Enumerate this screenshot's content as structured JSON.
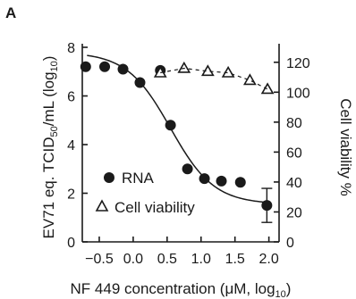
{
  "panel_label": "A",
  "chart_data": {
    "type": "scatter",
    "xlabel": {
      "main": "NF 449 concentration (μM, log",
      "sub": "10",
      "end": ")"
    },
    "ylabel_left": {
      "main": "EV71 eq. TCID",
      "sub": "50",
      "mid": "/mL (log",
      "sub2": "10",
      "end": ")"
    },
    "ylabel_right": "Cell viability %",
    "xlim": [
      -0.75,
      2.15
    ],
    "ylim_left": [
      0,
      8
    ],
    "ylim_right": [
      0,
      130
    ],
    "xticks": [
      -0.5,
      0.0,
      0.5,
      1.0,
      1.5,
      2.0
    ],
    "xtick_labels": [
      "−0.5",
      "0.0",
      "0.5",
      "1.0",
      "1.5",
      "2.0"
    ],
    "yticks_left": [
      0,
      2,
      4,
      6,
      8
    ],
    "yticks_right": [
      0,
      20,
      40,
      60,
      80,
      100,
      120
    ],
    "series": [
      {
        "name": "RNA",
        "axis": "left",
        "marker": "filled-circle",
        "x": [
          -0.7,
          -0.42,
          -0.15,
          0.1,
          0.4,
          0.55,
          0.8,
          1.05,
          1.3,
          1.58,
          1.97
        ],
        "y": [
          7.2,
          7.2,
          7.1,
          6.55,
          7.05,
          4.8,
          3.0,
          2.6,
          2.5,
          2.45,
          1.5
        ],
        "error": [
          null,
          null,
          null,
          null,
          null,
          null,
          null,
          null,
          null,
          null,
          0.7
        ]
      },
      {
        "name": "Cell viability",
        "axis": "right",
        "marker": "open-triangle",
        "x": [
          0.4,
          0.75,
          1.1,
          1.4,
          1.72,
          1.98
        ],
        "y": [
          113,
          116,
          114,
          113,
          108,
          102
        ]
      }
    ],
    "fit_curve": {
      "axis": "left",
      "top": 7.8,
      "bottom": 1.55,
      "ec50_log": 0.55,
      "hill": 1.35
    },
    "legend_position": "bottom-left"
  }
}
